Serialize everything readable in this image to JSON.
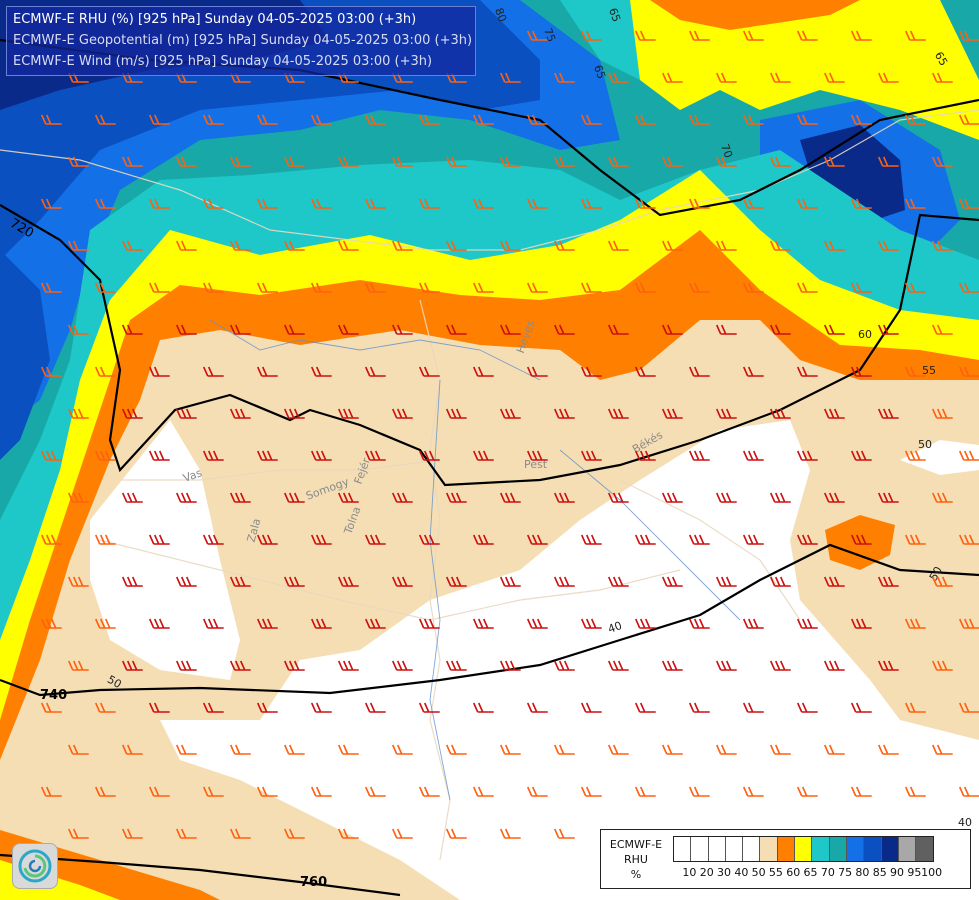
{
  "titles": {
    "rhu": "ECMWF-E RHU (%) [925 hPa] Sunday 04-05-2025 03:00 (+3h)",
    "geopotential": "ECMWF-E Geopotential (m) [925 hPa] Sunday 04-05-2025 03:00 (+3h)",
    "wind": "ECMWF-E Wind (m/s) [925 hPa] Sunday 04-05-2025 03:00 (+3h)"
  },
  "legend": {
    "title_lines": [
      "ECMWF-E",
      "RHU",
      "%"
    ],
    "levels": [
      "10",
      "20",
      "30",
      "40",
      "50",
      "55",
      "60",
      "65",
      "70",
      "75",
      "80",
      "85",
      "90",
      "95",
      "100"
    ],
    "colors": [
      "#ffffff",
      "#ffffff",
      "#ffffff",
      "#ffffff",
      "#ffffff",
      "#f5deb3",
      "#ff8000",
      "#ffff00",
      "#1ec8c8",
      "#18a8a8",
      "#1470e6",
      "#0a50c0",
      "#0a2a8a",
      "#a8a8a8",
      "#606060"
    ]
  },
  "geopotential_labels": [
    "720",
    "740",
    "760"
  ],
  "rhu_labels": [
    "80",
    "75",
    "65",
    "65",
    "70",
    "60",
    "55",
    "50",
    "50",
    "40",
    "40",
    "50",
    "65"
  ],
  "region_labels": [
    "Vas",
    "Zala",
    "Somogy",
    "Tolna",
    "Fejér",
    "Pest",
    "Heves",
    "Békés"
  ],
  "colors": {
    "rhu_orange": "#ff8000",
    "rhu_yellow": "#ffff00",
    "rhu_tan": "#f5deb3",
    "rhu_cyan": "#1ec8c8",
    "rhu_teal": "#18a8a8",
    "rhu_blue": "#1470e6",
    "rhu_darkblue": "#0a2a8a",
    "wind_barb_red": "#cc1010",
    "wind_barb_orange": "#ff6010"
  },
  "logo_icon": "ecmwf-swirl-icon"
}
